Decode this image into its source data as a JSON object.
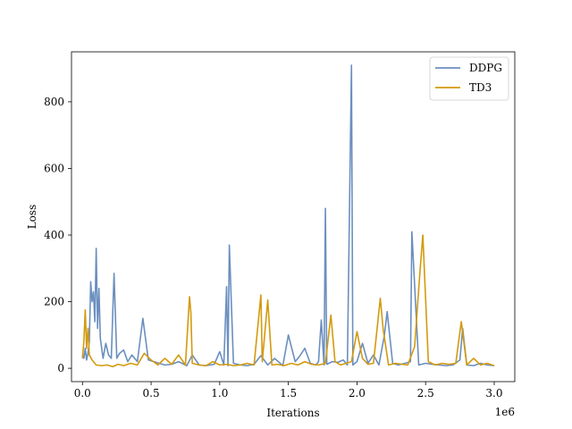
{
  "chart_data": {
    "type": "line",
    "title": "",
    "xlabel": "Iterations",
    "ylabel": "Loss",
    "x_offset_label": "1e6",
    "xlim": [
      -0.08,
      3.15
    ],
    "ylim": [
      -40,
      950
    ],
    "xticks": [
      0.0,
      0.5,
      1.0,
      1.5,
      2.0,
      2.5,
      3.0
    ],
    "xtick_labels": [
      "0.0",
      "0.5",
      "1.0",
      "1.5",
      "2.0",
      "2.5",
      "3.0"
    ],
    "yticks": [
      0,
      200,
      400,
      600,
      800
    ],
    "ytick_labels": [
      "0",
      "200",
      "400",
      "600",
      "800"
    ],
    "grid": false,
    "legend_position": "upper right",
    "colors": {
      "DDPG": "#6b8fbf",
      "TD3": "#d39a0e"
    },
    "series": [
      {
        "name": "DDPG",
        "x": [
          0.0,
          0.01,
          0.02,
          0.03,
          0.04,
          0.05,
          0.06,
          0.07,
          0.08,
          0.09,
          0.1,
          0.11,
          0.12,
          0.13,
          0.14,
          0.15,
          0.17,
          0.19,
          0.21,
          0.23,
          0.25,
          0.27,
          0.3,
          0.33,
          0.36,
          0.4,
          0.44,
          0.48,
          0.52,
          0.56,
          0.6,
          0.65,
          0.7,
          0.76,
          0.8,
          0.85,
          0.9,
          0.96,
          1.0,
          1.03,
          1.05,
          1.06,
          1.07,
          1.1,
          1.15,
          1.2,
          1.25,
          1.3,
          1.35,
          1.4,
          1.46,
          1.5,
          1.55,
          1.58,
          1.62,
          1.66,
          1.7,
          1.72,
          1.74,
          1.76,
          1.77,
          1.78,
          1.82,
          1.86,
          1.9,
          1.93,
          1.96,
          1.97,
          2.0,
          2.04,
          2.08,
          2.12,
          2.16,
          2.2,
          2.22,
          2.26,
          2.3,
          2.35,
          2.39,
          2.4,
          2.45,
          2.5,
          2.55,
          2.6,
          2.65,
          2.7,
          2.75,
          2.77,
          2.8,
          2.85,
          2.9,
          2.95,
          3.0
        ],
        "y": [
          40,
          30,
          60,
          25,
          45,
          80,
          260,
          200,
          230,
          140,
          360,
          120,
          240,
          90,
          60,
          30,
          75,
          40,
          30,
          285,
          30,
          45,
          55,
          20,
          40,
          20,
          150,
          25,
          20,
          15,
          10,
          12,
          20,
          8,
          40,
          10,
          8,
          12,
          50,
          10,
          245,
          8,
          370,
          15,
          10,
          8,
          12,
          38,
          10,
          30,
          8,
          100,
          20,
          35,
          60,
          15,
          10,
          20,
          145,
          10,
          480,
          12,
          20,
          18,
          25,
          10,
          910,
          10,
          20,
          75,
          15,
          40,
          10,
          100,
          170,
          15,
          10,
          15,
          20,
          410,
          10,
          15,
          12,
          10,
          8,
          10,
          25,
          120,
          10,
          8,
          15,
          10,
          8
        ]
      },
      {
        "name": "TD3",
        "x": [
          0.0,
          0.01,
          0.02,
          0.03,
          0.04,
          0.05,
          0.07,
          0.1,
          0.14,
          0.18,
          0.22,
          0.26,
          0.3,
          0.35,
          0.4,
          0.45,
          0.5,
          0.55,
          0.6,
          0.65,
          0.7,
          0.75,
          0.78,
          0.79,
          0.8,
          0.85,
          0.9,
          0.95,
          1.0,
          1.05,
          1.1,
          1.15,
          1.2,
          1.25,
          1.3,
          1.31,
          1.35,
          1.38,
          1.42,
          1.47,
          1.52,
          1.57,
          1.62,
          1.67,
          1.72,
          1.77,
          1.81,
          1.84,
          1.88,
          1.92,
          1.96,
          2.0,
          2.04,
          2.08,
          2.12,
          2.17,
          2.19,
          2.23,
          2.28,
          2.33,
          2.37,
          2.42,
          2.46,
          2.48,
          2.52,
          2.57,
          2.62,
          2.67,
          2.72,
          2.76,
          2.8,
          2.85,
          2.9,
          2.95,
          3.0
        ],
        "y": [
          30,
          80,
          175,
          60,
          120,
          40,
          25,
          10,
          8,
          10,
          5,
          12,
          8,
          15,
          10,
          45,
          25,
          10,
          30,
          12,
          40,
          10,
          215,
          165,
          15,
          10,
          8,
          20,
          10,
          12,
          8,
          10,
          15,
          10,
          220,
          20,
          205,
          10,
          12,
          8,
          15,
          10,
          20,
          12,
          10,
          15,
          160,
          20,
          10,
          15,
          20,
          110,
          30,
          12,
          15,
          210,
          120,
          10,
          15,
          12,
          10,
          65,
          295,
          400,
          20,
          10,
          15,
          12,
          15,
          140,
          10,
          30,
          10,
          15,
          8
        ]
      }
    ]
  }
}
